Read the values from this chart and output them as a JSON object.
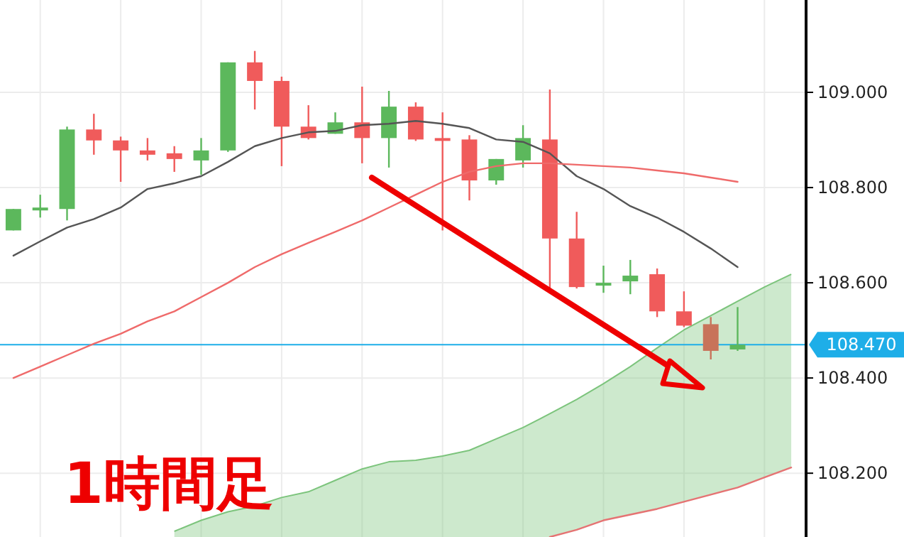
{
  "chart_data": {
    "type": "candlestick",
    "categories": [
      null,
      null,
      null,
      null,
      null,
      null,
      null,
      null,
      null,
      null,
      null,
      null,
      null,
      null,
      null,
      null,
      null,
      null,
      null,
      null,
      null,
      null,
      null,
      null,
      null,
      null,
      null,
      null,
      null,
      null
    ],
    "ohlc": [
      [
        108.71,
        108.755,
        108.71,
        108.755
      ],
      [
        108.752,
        108.785,
        108.737,
        108.758
      ],
      [
        108.755,
        108.928,
        108.731,
        108.922
      ],
      [
        108.922,
        108.955,
        108.869,
        108.899
      ],
      [
        108.899,
        108.907,
        108.812,
        108.878
      ],
      [
        108.878,
        108.904,
        108.857,
        108.869
      ],
      [
        108.872,
        108.887,
        108.833,
        108.86
      ],
      [
        108.857,
        108.904,
        108.827,
        108.878
      ],
      [
        108.878,
        109.063,
        108.875,
        109.063
      ],
      [
        109.063,
        109.087,
        108.964,
        109.024
      ],
      [
        109.024,
        109.033,
        108.845,
        108.928
      ],
      [
        108.928,
        108.973,
        108.901,
        108.904
      ],
      [
        108.913,
        108.958,
        108.913,
        108.937
      ],
      [
        108.937,
        109.012,
        108.851,
        108.904
      ],
      [
        108.904,
        109.003,
        108.842,
        108.97
      ],
      [
        108.97,
        108.979,
        108.898,
        108.901
      ],
      [
        108.904,
        108.958,
        108.71,
        108.898
      ],
      [
        108.901,
        108.91,
        108.773,
        108.815
      ],
      [
        108.815,
        108.86,
        108.806,
        108.86
      ],
      [
        108.857,
        108.931,
        108.842,
        108.904
      ],
      [
        108.901,
        109.006,
        108.582,
        108.693
      ],
      [
        108.693,
        108.749,
        108.588,
        108.591
      ],
      [
        108.594,
        108.636,
        108.579,
        108.6
      ],
      [
        108.603,
        108.648,
        108.576,
        108.615
      ],
      [
        108.618,
        108.63,
        108.528,
        108.54
      ],
      [
        108.54,
        108.582,
        108.507,
        108.51
      ],
      [
        108.513,
        108.528,
        108.439,
        108.457
      ],
      [
        108.46,
        108.549,
        108.457,
        108.47
      ],
      null,
      null
    ],
    "colors": [
      "#5cb85c",
      "#5cb85c",
      "#5cb85c",
      "#f05b5b",
      "#f05b5b",
      "#f05b5b",
      "#f05b5b",
      "#5cb85c",
      "#5cb85c",
      "#f05b5b",
      "#f05b5b",
      "#f05b5b",
      "#5cb85c",
      "#f05b5b",
      "#5cb85c",
      "#f05b5b",
      "#f05b5b",
      "#f05b5b",
      "#5cb85c",
      "#5cb85c",
      "#f05b5b",
      "#f05b5b",
      "#5cb85c",
      "#5cb85c",
      "#f05b5b",
      "#f05b5b",
      "#c8735a",
      "#5cb85c",
      null,
      null
    ],
    "series": [
      {
        "type": "area",
        "color": "#7cc47c",
        "values": [
          null,
          null,
          null,
          null,
          null,
          null,
          108.078,
          108.101,
          108.119,
          108.131,
          108.149,
          108.161,
          108.185,
          108.209,
          108.224,
          108.227,
          108.236,
          108.248,
          108.272,
          108.296,
          108.325,
          108.355,
          108.388,
          108.424,
          108.463,
          108.501,
          108.531,
          108.561,
          108.591,
          108.618
        ]
      },
      {
        "type": "line",
        "color": "#e57373",
        "values": [
          null,
          null,
          null,
          null,
          null,
          null,
          null,
          null,
          null,
          null,
          null,
          null,
          null,
          null,
          null,
          null,
          null,
          null,
          null,
          null,
          108.066,
          108.081,
          108.101,
          108.113,
          108.125,
          108.14,
          108.155,
          108.17,
          108.191,
          108.212
        ]
      },
      {
        "type": "line",
        "color": "#555555",
        "values": [
          108.657,
          108.687,
          108.716,
          108.734,
          108.758,
          108.797,
          108.809,
          108.824,
          108.854,
          108.887,
          108.904,
          108.916,
          108.919,
          108.931,
          108.934,
          108.94,
          108.934,
          108.925,
          108.901,
          108.896,
          108.872,
          108.824,
          108.797,
          108.761,
          108.737,
          108.707,
          108.672,
          108.633,
          null,
          null
        ]
      },
      {
        "type": "line",
        "color": "#ef6a6a",
        "values": [
          108.4,
          108.424,
          108.448,
          108.472,
          108.493,
          108.519,
          108.54,
          108.57,
          108.6,
          108.633,
          108.66,
          108.684,
          108.707,
          108.731,
          108.758,
          108.785,
          108.812,
          108.833,
          108.845,
          108.851,
          108.851,
          108.848,
          108.845,
          108.842,
          108.836,
          108.83,
          108.821,
          108.812,
          null,
          null
        ]
      }
    ],
    "ylim": [
      108.066,
      109.194
    ],
    "yticks": [
      {
        "value": 108.2,
        "label": "108.200"
      },
      {
        "value": 108.4,
        "label": "108.400"
      },
      {
        "value": 108.6,
        "label": "108.600"
      },
      {
        "value": 108.8,
        "label": "108.800"
      },
      {
        "value": 109.0,
        "label": "109.000"
      }
    ],
    "grid": true,
    "ref_lines": [
      {
        "axis": "y",
        "value": 108.47,
        "label": "108.470",
        "color": "#1eaee8"
      }
    ],
    "annotations": [
      "1時間足"
    ]
  }
}
